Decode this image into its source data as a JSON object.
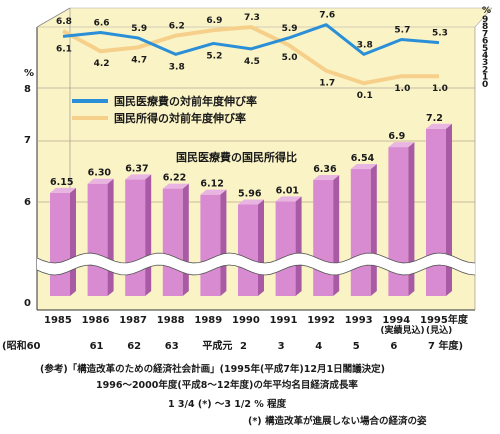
{
  "chart_data": [
    {
      "type": "line",
      "x": [
        "1985",
        "1986",
        "1987",
        "1988",
        "1989",
        "1990",
        "1991",
        "1992",
        "1993",
        "1994",
        "1995"
      ],
      "series": [
        {
          "name": "国民医療費の対前年度伸び率",
          "values": [
            6.1,
            6.6,
            5.9,
            3.8,
            5.2,
            4.5,
            5.9,
            7.6,
            3.8,
            5.7,
            5.3
          ]
        },
        {
          "name": "国民所得の対前年度伸び率",
          "values": [
            6.8,
            4.2,
            4.7,
            6.2,
            6.9,
            7.3,
            5.0,
            1.7,
            0.1,
            1.0,
            1.0
          ]
        }
      ],
      "ylabel": "%",
      "ylim": [
        0,
        9
      ],
      "yticks": [
        "9",
        "8",
        "7",
        "6",
        "5",
        "4",
        "3",
        "2",
        "1",
        "0"
      ]
    },
    {
      "type": "bar",
      "title": "国民医療費の国民所得比",
      "categories": [
        "1985",
        "1986",
        "1987",
        "1988",
        "1989",
        "1990",
        "1991",
        "1992",
        "1993",
        "1994",
        "1995"
      ],
      "values": [
        6.15,
        6.3,
        6.37,
        6.22,
        6.12,
        5.96,
        6.01,
        6.36,
        6.54,
        6.9,
        7.2
      ],
      "value_labels": [
        "6.15",
        "6.30",
        "6.37",
        "6.22",
        "6.12",
        "5.96",
        "6.01",
        "6.36",
        "6.54",
        "6.9",
        "7.2"
      ],
      "ylabel": "%",
      "yticks": [
        "8",
        "7",
        "6",
        "0"
      ],
      "axis_break": true
    }
  ],
  "x_axis": {
    "years": [
      "1985",
      "1986",
      "1987",
      "1988",
      "1989",
      "1990",
      "1991",
      "1992",
      "1993",
      "1994",
      "1995年度"
    ],
    "era": [
      "(昭和60",
      "61",
      "62",
      "63",
      "平成元",
      "2",
      "3",
      "4",
      "5",
      "6",
      "7 年度)"
    ],
    "annotations": [
      "(実績見込)",
      "(見込)"
    ]
  },
  "notes": {
    "line1": "(参考)「構造改革のための経済社会計画」(1995年(平成7年)12月1日閣議決定)",
    "line2": "1996～2000年度(平成8～12年度)の年平均名目経済成長率",
    "growth": "1 3/4 (*) ～3 1/2 % 程度",
    "footnote": "(*) 構造改革が進展しない場合の経済の姿"
  },
  "colors": {
    "background": "#faf3c6",
    "medical_line": "#2a8fd6",
    "income_line": "#f6d08a",
    "bar_fill": "#d98bd1",
    "bar_side": "#a85aa4",
    "bar_top": "#e8b4e2"
  }
}
